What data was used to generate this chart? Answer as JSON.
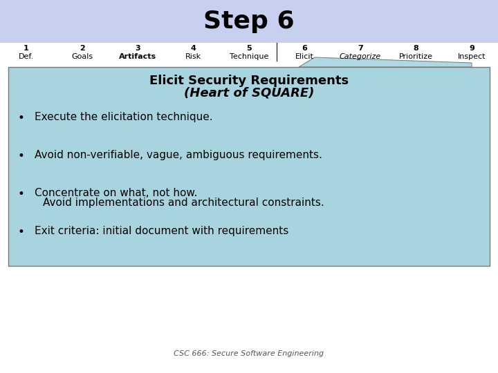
{
  "title": "Step 6",
  "title_bg_color": "#c8d0f0",
  "title_fontsize": 26,
  "step_numbers": [
    "1",
    "2",
    "3",
    "4",
    "5",
    "6",
    "7",
    "8",
    "9"
  ],
  "step_labels": [
    "Def.",
    "Goals",
    "Artifacts",
    "Risk",
    "Technique",
    "Elicit",
    "Categorize",
    "Prioritize",
    "Inspect"
  ],
  "step_label_italic": [
    false,
    false,
    false,
    false,
    false,
    false,
    true,
    false,
    false
  ],
  "step_label_bold": [
    false,
    false,
    true,
    false,
    false,
    false,
    false,
    false,
    false
  ],
  "nav_fontsize": 8,
  "content_bg_color": "#a8d4e0",
  "content_title": "Elicit Security Requirements",
  "content_subtitle": "(Heart of SQUARE)",
  "content_title_fontsize": 13,
  "bullets": [
    "Execute the elicitation technique.",
    "Avoid non-verifiable, vague, ambiguous requirements.",
    "Concentrate on what, not how.\n  Avoid implementations and architectural constraints.",
    "Exit criteria: initial document with requirements"
  ],
  "bullet_fontsize": 11,
  "footer": "CSC 666: Secure Software Engineering",
  "footer_fontsize": 8,
  "bg_color": "#ffffff",
  "content_border_color": "#777777",
  "tab_color": "#b0d8e4"
}
